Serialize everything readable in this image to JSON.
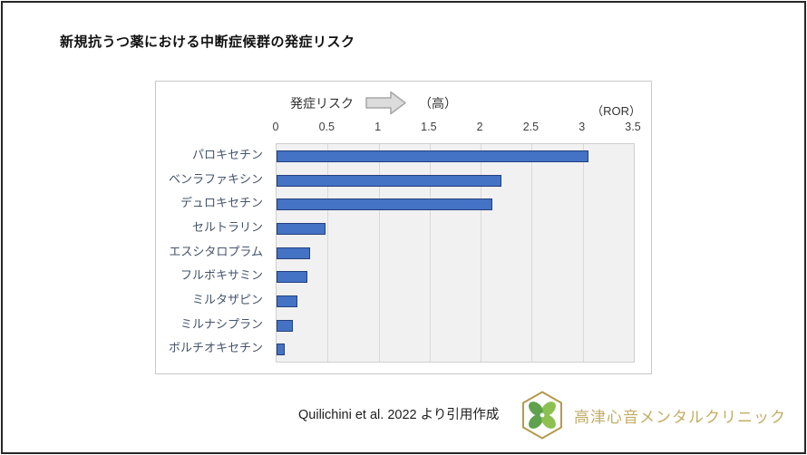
{
  "page": {
    "title": "新規抗うつ薬における中断症候群の発症リスク"
  },
  "chart_header": {
    "risk_label": "発症リスク",
    "arrow_icon": "right-arrow",
    "high_label": "（高）",
    "unit_label": "（ROR）"
  },
  "chart_data": {
    "type": "bar",
    "orientation": "horizontal",
    "title": "新規抗うつ薬における中断症候群の発症リスク",
    "xlabel": "（ROR）",
    "xlim": [
      0,
      3.5
    ],
    "x_ticks": [
      "0",
      "0.5",
      "1",
      "1.5",
      "2",
      "2.5",
      "3",
      "3.5"
    ],
    "grid": true,
    "categories": [
      "パロキセチン",
      "ベンラファキシン",
      "デュロキセチン",
      "セルトラリン",
      "エスシタロプラム",
      "フルボキサミン",
      "ミルタザピン",
      "ミルナシプラン",
      "ボルチオキセチン"
    ],
    "values": [
      3.06,
      2.2,
      2.11,
      0.48,
      0.33,
      0.3,
      0.2,
      0.16,
      0.08
    ],
    "bar_color": "#4472C4",
    "bar_border_color": "#24417E",
    "plot_bg": "#F1F1F1",
    "gridline_color": "#D9D9D9"
  },
  "footer": {
    "citation": "Quilichini  et al. 2022 より引用作成",
    "clinic_name": "高津心音メンタルクリニック",
    "clinic_color": "#C2AD66",
    "logo_icon": "clover-hexagon"
  }
}
